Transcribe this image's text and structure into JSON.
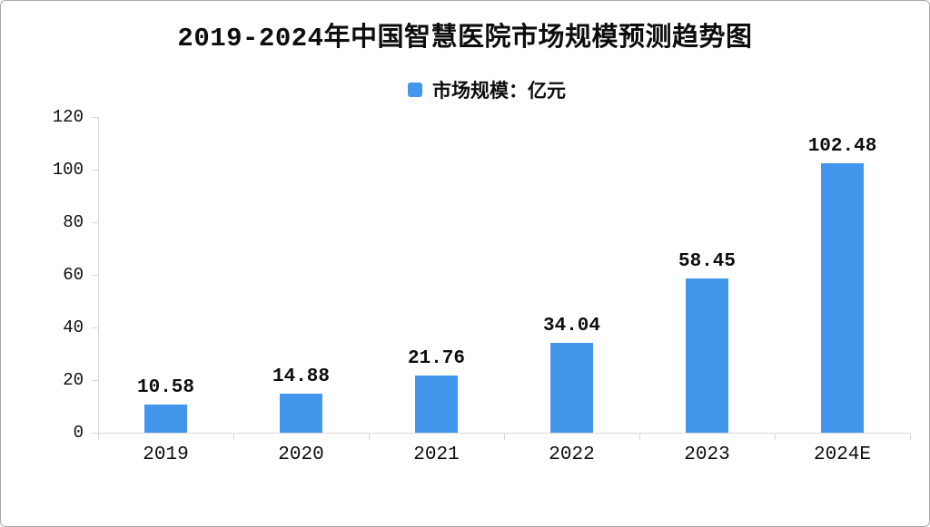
{
  "page": {
    "background": "#ffffff",
    "border_color": "#aaaaaa"
  },
  "chart_data": {
    "type": "bar",
    "title": "2019-2024年中国智慧医院市场规模预测趋势图",
    "legend": {
      "label": "市场规模：亿元",
      "swatch_color": "#4297ec",
      "position": "top-center"
    },
    "categories": [
      "2019",
      "2020",
      "2021",
      "2022",
      "2023",
      "2024E"
    ],
    "series": [
      {
        "name": "市场规模：亿元",
        "values": [
          10.58,
          14.88,
          21.76,
          34.04,
          58.45,
          102.48
        ]
      }
    ],
    "value_labels": [
      "10.58",
      "14.88",
      "21.76",
      "34.04",
      "58.45",
      "102.48"
    ],
    "xlabel": "",
    "ylabel": "",
    "ylim": [
      0,
      120
    ],
    "y_ticks": [
      0,
      20,
      40,
      60,
      80,
      100,
      120
    ],
    "grid": false,
    "bar_color": "#4297ec",
    "axis_color": "#d8d8d8"
  }
}
